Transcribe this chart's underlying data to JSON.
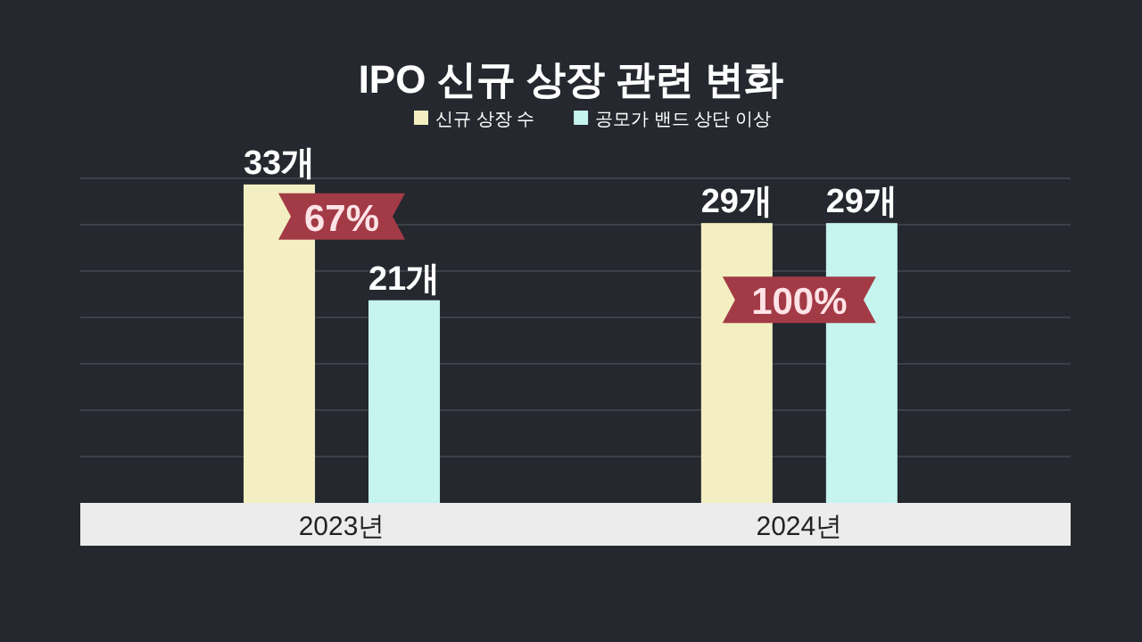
{
  "chart_data": {
    "type": "bar",
    "title": "IPO 신규 상장 관련 변화",
    "categories": [
      "2023년",
      "2024년"
    ],
    "series": [
      {
        "name": "신규 상장 수",
        "color": "#f3efc2",
        "values": [
          33,
          29
        ],
        "value_labels": [
          "33개",
          "29개"
        ]
      },
      {
        "name": "공모가 밴드 상단 이상",
        "color": "#c6f4ef",
        "values": [
          21,
          29
        ],
        "value_labels": [
          "21개",
          "29개"
        ]
      }
    ],
    "annotations": [
      "67%",
      "100%"
    ],
    "grid": "y",
    "legend": "top"
  }
}
